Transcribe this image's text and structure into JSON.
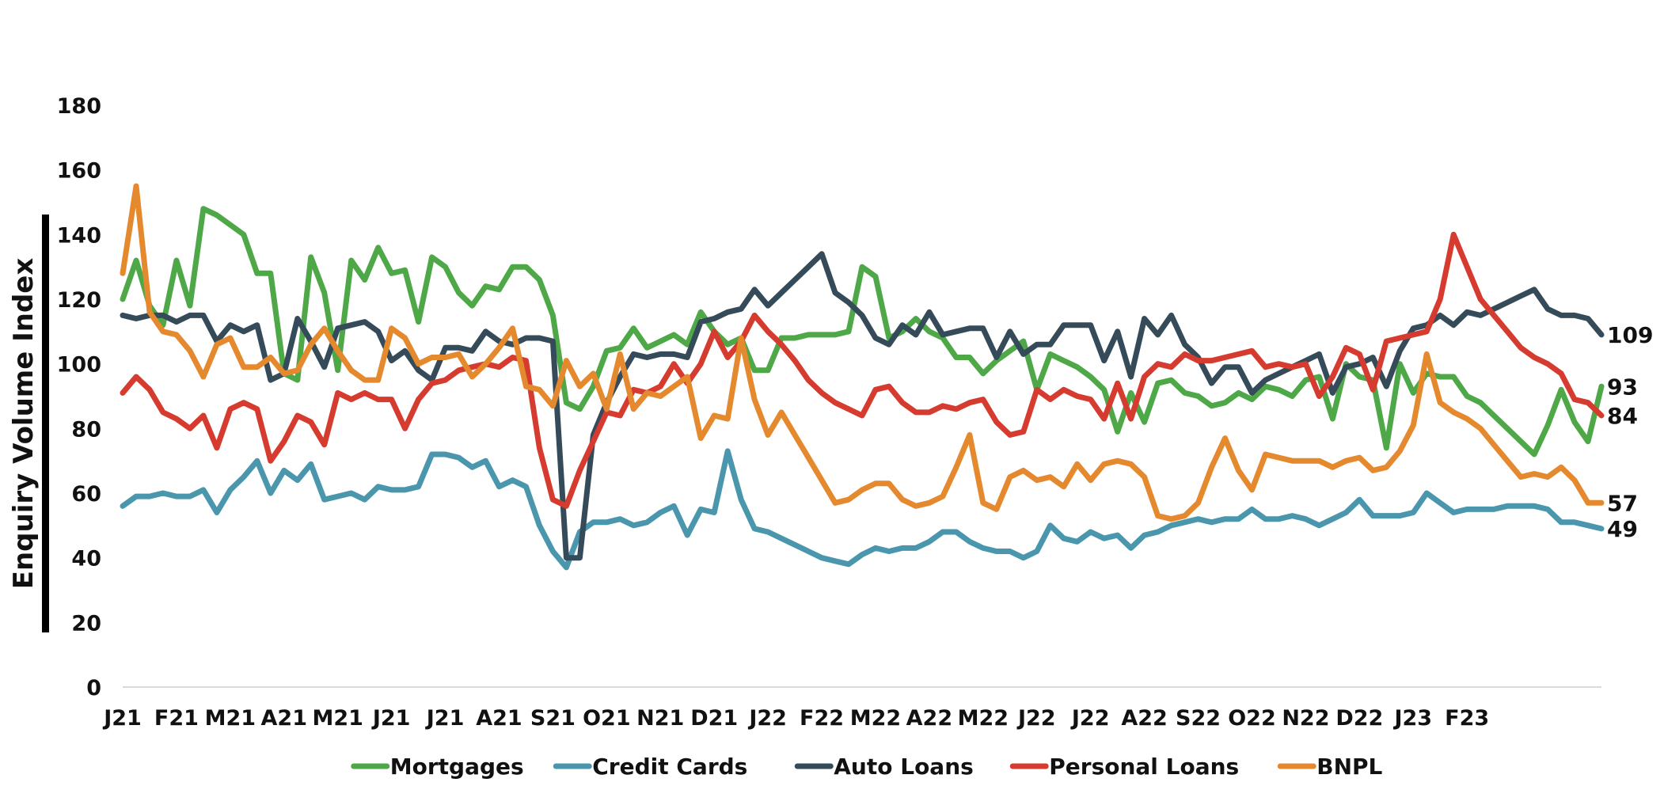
{
  "chart_data": {
    "type": "line",
    "title": "",
    "xlabel": "",
    "ylabel": "Enquiry Volume Index",
    "ylim": [
      0,
      180
    ],
    "yticks": [
      0,
      20,
      40,
      60,
      80,
      100,
      120,
      140,
      160,
      180
    ],
    "grid": false,
    "legend_position": "bottom",
    "x_tick_labels": [
      "J21",
      "F21",
      "M21",
      "A21",
      "M21",
      "J21",
      "J21",
      "A21",
      "S21",
      "O21",
      "N21",
      "D21",
      "J22",
      "F22",
      "M22",
      "A22",
      "M22",
      "J22",
      "J22",
      "A22",
      "S22",
      "O22",
      "N22",
      "D22",
      "J23",
      "F23"
    ],
    "points_per_month": 4,
    "series": [
      {
        "name": "Mortgages",
        "color": "#4ea847",
        "end_label": "93",
        "values": [
          120,
          132,
          118,
          112,
          132,
          118,
          148,
          146,
          143,
          140,
          128,
          128,
          97,
          95,
          133,
          122,
          98,
          132,
          126,
          136,
          128,
          129,
          113,
          133,
          130,
          122,
          118,
          124,
          123,
          130,
          130,
          126,
          115,
          88,
          86,
          93,
          104,
          105,
          111,
          105,
          107,
          109,
          106,
          116,
          110,
          106,
          108,
          98,
          98,
          108,
          108,
          109,
          109,
          109,
          110,
          130,
          127,
          108,
          110,
          114,
          110,
          108,
          102,
          102,
          97,
          101,
          104,
          107,
          92,
          103,
          101,
          99,
          96,
          92,
          79,
          91,
          82,
          94,
          95,
          91,
          90,
          87,
          88,
          91,
          89,
          93,
          92,
          90,
          95,
          96,
          83,
          100,
          96,
          95,
          74,
          100,
          91,
          97,
          96,
          96,
          90,
          88,
          84,
          80,
          76,
          72,
          81,
          92,
          82,
          76,
          93
        ]
      },
      {
        "name": "Credit Cards",
        "color": "#4996ad",
        "end_label": "49",
        "values": [
          56,
          59,
          59,
          60,
          59,
          59,
          61,
          54,
          61,
          65,
          70,
          60,
          67,
          64,
          69,
          58,
          59,
          60,
          58,
          62,
          61,
          61,
          62,
          72,
          72,
          71,
          68,
          70,
          62,
          64,
          62,
          50,
          42,
          37,
          48,
          51,
          51,
          52,
          50,
          51,
          54,
          56,
          47,
          55,
          54,
          73,
          58,
          49,
          48,
          46,
          44,
          42,
          40,
          39,
          38,
          41,
          43,
          42,
          43,
          43,
          45,
          48,
          48,
          45,
          43,
          42,
          42,
          40,
          42,
          50,
          46,
          45,
          48,
          46,
          47,
          43,
          47,
          48,
          50,
          51,
          52,
          51,
          52,
          52,
          55,
          52,
          52,
          53,
          52,
          50,
          52,
          54,
          58,
          53,
          53,
          53,
          54,
          60,
          57,
          54,
          55,
          55,
          55,
          56,
          56,
          56,
          55,
          51,
          51,
          50,
          49
        ]
      },
      {
        "name": "Auto Loans",
        "color": "#354b59",
        "end_label": "109",
        "values": [
          115,
          114,
          115,
          115,
          113,
          115,
          115,
          107,
          112,
          110,
          112,
          95,
          97,
          114,
          107,
          99,
          111,
          112,
          113,
          110,
          101,
          104,
          98,
          95,
          105,
          105,
          104,
          110,
          107,
          106,
          108,
          108,
          107,
          40,
          40,
          78,
          88,
          96,
          103,
          102,
          103,
          103,
          102,
          113,
          114,
          116,
          117,
          123,
          118,
          122,
          126,
          130,
          134,
          122,
          119,
          115,
          108,
          106,
          112,
          109,
          116,
          109,
          110,
          111,
          111,
          102,
          110,
          103,
          106,
          106,
          112,
          112,
          112,
          101,
          110,
          96,
          114,
          109,
          115,
          106,
          102,
          94,
          99,
          99,
          91,
          95,
          97,
          99,
          101,
          103,
          91,
          99,
          100,
          102,
          93,
          104,
          111,
          112,
          115,
          112,
          116,
          115,
          117,
          119,
          121,
          123,
          117,
          115,
          115,
          114,
          109
        ]
      },
      {
        "name": "Personal Loans",
        "color": "#d63b2f",
        "end_label": "84",
        "values": [
          91,
          96,
          92,
          85,
          83,
          80,
          84,
          74,
          86,
          88,
          86,
          70,
          76,
          84,
          82,
          75,
          91,
          89,
          91,
          89,
          89,
          80,
          89,
          94,
          95,
          98,
          99,
          100,
          99,
          102,
          101,
          74,
          58,
          56,
          67,
          76,
          85,
          84,
          92,
          91,
          93,
          100,
          94,
          100,
          110,
          102,
          107,
          115,
          110,
          106,
          101,
          95,
          91,
          88,
          86,
          84,
          92,
          93,
          88,
          85,
          85,
          87,
          86,
          88,
          89,
          82,
          78,
          79,
          92,
          89,
          92,
          90,
          89,
          83,
          94,
          83,
          96,
          100,
          99,
          103,
          101,
          101,
          102,
          103,
          104,
          99,
          100,
          99,
          100,
          90,
          96,
          105,
          103,
          92,
          107,
          108,
          109,
          110,
          120,
          140,
          130,
          120,
          115,
          110,
          105,
          102,
          100,
          97,
          89,
          88,
          84
        ]
      },
      {
        "name": "BNPL",
        "color": "#e5892f",
        "end_label": "57",
        "values": [
          128,
          155,
          116,
          110,
          109,
          104,
          96,
          106,
          108,
          99,
          99,
          102,
          97,
          98,
          106,
          111,
          104,
          98,
          95,
          95,
          111,
          108,
          100,
          102,
          102,
          103,
          96,
          100,
          105,
          111,
          93,
          92,
          87,
          101,
          93,
          97,
          86,
          103,
          86,
          91,
          90,
          93,
          96,
          77,
          84,
          83,
          108,
          89,
          78,
          85,
          78,
          71,
          64,
          57,
          58,
          61,
          63,
          63,
          58,
          56,
          57,
          59,
          68,
          78,
          57,
          55,
          65,
          67,
          64,
          65,
          62,
          69,
          64,
          69,
          70,
          69,
          65,
          53,
          52,
          53,
          57,
          68,
          77,
          67,
          61,
          72,
          71,
          70,
          70,
          70,
          68,
          70,
          71,
          67,
          68,
          73,
          81,
          103,
          88,
          85,
          83,
          80,
          75,
          70,
          65,
          66,
          65,
          68,
          64,
          57,
          57
        ]
      }
    ]
  }
}
